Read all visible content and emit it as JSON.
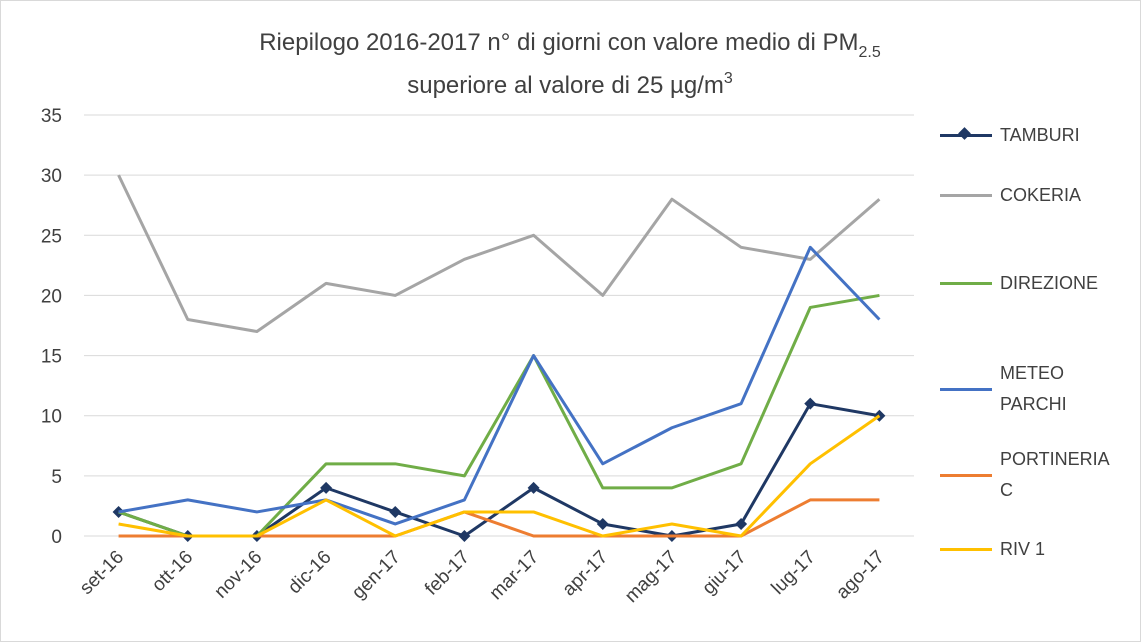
{
  "chart_data": {
    "type": "line",
    "title": {
      "line1": "Riepilogo  2016-2017 n° di giorni con valore medio di PM",
      "line1_sub": "2.5",
      "line2": "superiore al valore di 25 µg/m",
      "line2_sup": "3"
    },
    "categories": [
      "set-16",
      "ott-16",
      "nov-16",
      "dic-16",
      "gen-17",
      "feb-17",
      "mar-17",
      "apr-17",
      "mag-17",
      "giu-17",
      "lug-17",
      "ago-17"
    ],
    "series": [
      {
        "name": "TAMBURI",
        "color": "#1f3864",
        "marker": "diamond",
        "values": [
          2,
          0,
          0,
          4,
          2,
          0,
          4,
          1,
          0,
          1,
          11,
          10
        ]
      },
      {
        "name": "COKERIA",
        "color": "#a5a5a5",
        "values": [
          30,
          18,
          17,
          21,
          20,
          23,
          25,
          20,
          28,
          24,
          23,
          28
        ]
      },
      {
        "name": "DIREZIONE",
        "color": "#70ad47",
        "values": [
          2,
          0,
          0,
          6,
          6,
          5,
          15,
          4,
          4,
          6,
          19,
          20
        ]
      },
      {
        "name": "METEO PARCHI",
        "color": "#4472c4",
        "values": [
          2,
          3,
          2,
          3,
          1,
          3,
          15,
          6,
          9,
          11,
          24,
          18
        ]
      },
      {
        "name": "PORTINERIA C",
        "color": "#ed7d31",
        "values": [
          0,
          0,
          0,
          0,
          0,
          2,
          0,
          0,
          0,
          0,
          3,
          3
        ]
      },
      {
        "name": "RIV 1",
        "color": "#ffc000",
        "values": [
          1,
          0,
          0,
          3,
          0,
          2,
          2,
          0,
          1,
          0,
          6,
          10
        ]
      }
    ],
    "ylim": [
      0,
      35
    ],
    "yticks": [
      0,
      5,
      10,
      15,
      20,
      25,
      30,
      35
    ],
    "grid": true,
    "legend": "right"
  }
}
